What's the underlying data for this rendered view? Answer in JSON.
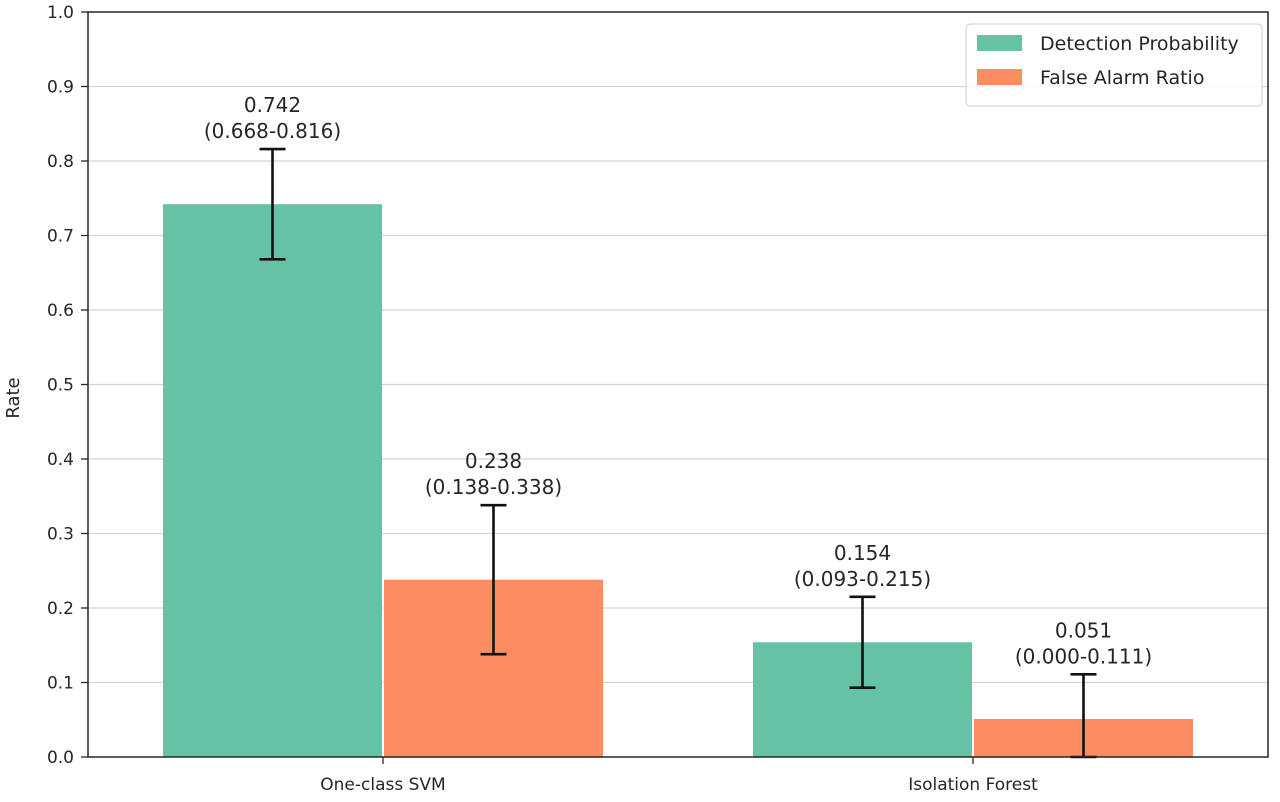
{
  "chart_data": {
    "type": "bar",
    "categories": [
      "One-class SVM",
      "Isolation Forest"
    ],
    "series": [
      {
        "name": "Detection Probability",
        "color": "#66c2a5",
        "values": [
          0.742,
          0.154
        ],
        "ci_low": [
          0.668,
          0.093
        ],
        "ci_high": [
          0.816,
          0.215
        ],
        "labels": [
          "0.742",
          "0.154"
        ],
        "ci_labels": [
          "(0.668-0.816)",
          "(0.093-0.215)"
        ]
      },
      {
        "name": "False Alarm Ratio",
        "color": "#fc8d62",
        "values": [
          0.238,
          0.051
        ],
        "ci_low": [
          0.138,
          0.0
        ],
        "ci_high": [
          0.338,
          0.111
        ],
        "labels": [
          "0.238",
          "0.051"
        ],
        "ci_labels": [
          "(0.138-0.338)",
          "(0.000-0.111)"
        ]
      }
    ],
    "xlabel": "",
    "ylabel": "Rate",
    "ylim": [
      0,
      1.0
    ],
    "yticks": [
      0.0,
      0.1,
      0.2,
      0.3,
      0.4,
      0.5,
      0.6,
      0.7,
      0.8,
      0.9,
      1.0
    ],
    "ytick_labels": [
      "0.0",
      "0.1",
      "0.2",
      "0.3",
      "0.4",
      "0.5",
      "0.6",
      "0.7",
      "0.8",
      "0.9",
      "1.0"
    ],
    "grid": "horizontal",
    "legend": "top-right",
    "error_bars": true
  }
}
